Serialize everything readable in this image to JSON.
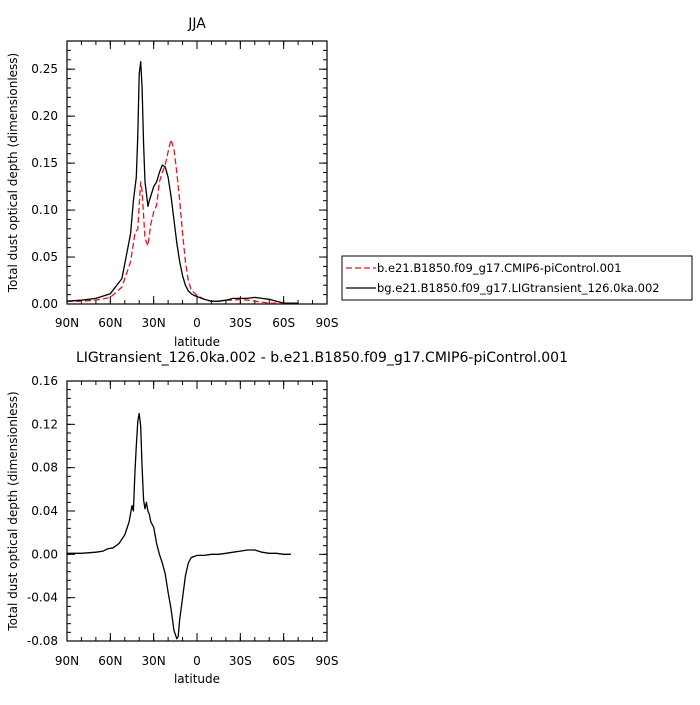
{
  "colors": {
    "control": "#e8141e",
    "transient": "#000000",
    "axis": "#000000"
  },
  "chart_data": [
    {
      "type": "line",
      "title": "JJA",
      "xlabel": "latitude",
      "ylabel": "Total dust optical depth (dimensionless)",
      "xlim": [
        90,
        -90
      ],
      "ylim": [
        0,
        0.28
      ],
      "x_ticks": [
        {
          "value": 90,
          "label": "90N"
        },
        {
          "value": 60,
          "label": "60N"
        },
        {
          "value": 30,
          "label": "30N"
        },
        {
          "value": 0,
          "label": "0"
        },
        {
          "value": -30,
          "label": "30S"
        },
        {
          "value": -60,
          "label": "60S"
        },
        {
          "value": -90,
          "label": "90S"
        }
      ],
      "y_ticks": [
        {
          "value": 0.0,
          "label": "0.00"
        },
        {
          "value": 0.05,
          "label": "0.05"
        },
        {
          "value": 0.1,
          "label": "0.10"
        },
        {
          "value": 0.15,
          "label": "0.15"
        },
        {
          "value": 0.2,
          "label": "0.20"
        },
        {
          "value": 0.25,
          "label": "0.25"
        }
      ],
      "grid": false,
      "legend_position": "right",
      "series": [
        {
          "name": "b.e21.B1850.f09_g17.CMIP6-piControl.001",
          "style": "dashed",
          "color": "#e8141e",
          "x": [
            90,
            80,
            70,
            60,
            52,
            46,
            43,
            41,
            40,
            39,
            38,
            36,
            34,
            32,
            30,
            28,
            26,
            24,
            22,
            20,
            18,
            16,
            14,
            12,
            10,
            8,
            6,
            4,
            2,
            0,
            -5,
            -10,
            -15,
            -20,
            -25,
            -30,
            -35,
            -40,
            -45,
            -50,
            -55,
            -60,
            -65,
            -70
          ],
          "y": [
            0.003,
            0.003,
            0.004,
            0.007,
            0.018,
            0.045,
            0.075,
            0.08,
            0.105,
            0.13,
            0.12,
            0.07,
            0.062,
            0.085,
            0.098,
            0.105,
            0.13,
            0.14,
            0.148,
            0.162,
            0.175,
            0.165,
            0.14,
            0.11,
            0.075,
            0.045,
            0.025,
            0.015,
            0.012,
            0.009,
            0.005,
            0.003,
            0.003,
            0.004,
            0.004,
            0.005,
            0.004,
            0.003,
            0.002,
            0.001,
            0.001,
            0.001,
            0.001,
            0.001
          ]
        },
        {
          "name": "bg.e21.B1850.f09_g17.LIGtransient_126.0ka.002",
          "style": "solid",
          "color": "#000000",
          "x": [
            90,
            80,
            70,
            60,
            52,
            46,
            44,
            42,
            41,
            40,
            39,
            38,
            37,
            36,
            35,
            34,
            33,
            32,
            30,
            28,
            26,
            24,
            22,
            20,
            18,
            16,
            14,
            12,
            10,
            8,
            6,
            4,
            2,
            0,
            -5,
            -10,
            -15,
            -20,
            -25,
            -30,
            -35,
            -40,
            -45,
            -50,
            -55,
            -60,
            -65,
            -70
          ],
          "y": [
            0.003,
            0.004,
            0.006,
            0.011,
            0.027,
            0.075,
            0.11,
            0.135,
            0.18,
            0.245,
            0.258,
            0.23,
            0.17,
            0.13,
            0.118,
            0.104,
            0.11,
            0.115,
            0.125,
            0.13,
            0.14,
            0.148,
            0.146,
            0.135,
            0.115,
            0.09,
            0.065,
            0.045,
            0.03,
            0.02,
            0.014,
            0.011,
            0.009,
            0.008,
            0.005,
            0.003,
            0.003,
            0.004,
            0.006,
            0.006,
            0.006,
            0.007,
            0.006,
            0.005,
            0.003,
            0.001,
            0.001,
            0.001
          ]
        }
      ]
    },
    {
      "type": "line",
      "title": "LIGtransient_126.0ka.002 - b.e21.B1850.f09_g17.CMIP6-piControl.001",
      "xlabel": "latitude",
      "ylabel": "Total dust optical depth (dimensionless)",
      "xlim": [
        90,
        -90
      ],
      "ylim": [
        -0.08,
        0.16
      ],
      "x_ticks": [
        {
          "value": 90,
          "label": "90N"
        },
        {
          "value": 60,
          "label": "60N"
        },
        {
          "value": 30,
          "label": "30N"
        },
        {
          "value": 0,
          "label": "0"
        },
        {
          "value": -30,
          "label": "30S"
        },
        {
          "value": -60,
          "label": "60S"
        },
        {
          "value": -90,
          "label": "90S"
        }
      ],
      "y_ticks": [
        {
          "value": -0.08,
          "label": "-0.08"
        },
        {
          "value": -0.04,
          "label": "-0.04"
        },
        {
          "value": 0.0,
          "label": "0.00"
        },
        {
          "value": 0.04,
          "label": "0.04"
        },
        {
          "value": 0.08,
          "label": "0.08"
        },
        {
          "value": 0.12,
          "label": "0.12"
        },
        {
          "value": 0.16,
          "label": "0.16"
        }
      ],
      "grid": false,
      "series": [
        {
          "name": "",
          "style": "solid",
          "color": "#000000",
          "x": [
            90,
            80,
            70,
            65,
            62,
            58,
            54,
            50,
            47,
            45,
            44,
            43,
            42,
            41,
            40,
            39,
            38,
            37,
            36,
            35,
            34,
            33,
            32,
            30,
            28,
            26,
            24,
            22,
            20,
            18,
            16,
            14,
            13,
            12,
            10,
            8,
            6,
            4,
            2,
            0,
            -5,
            -10,
            -15,
            -20,
            -25,
            -30,
            -35,
            -40,
            -45,
            -50,
            -55,
            -60,
            -65
          ],
          "y": [
            0.001,
            0.001,
            0.002,
            0.003,
            0.005,
            0.006,
            0.01,
            0.018,
            0.03,
            0.045,
            0.04,
            0.075,
            0.1,
            0.123,
            0.13,
            0.118,
            0.08,
            0.05,
            0.042,
            0.048,
            0.04,
            0.037,
            0.03,
            0.025,
            0.01,
            0.0,
            -0.008,
            -0.018,
            -0.035,
            -0.05,
            -0.07,
            -0.078,
            -0.076,
            -0.06,
            -0.04,
            -0.02,
            -0.008,
            -0.003,
            -0.002,
            -0.001,
            -0.001,
            0.0,
            0.0,
            0.001,
            0.002,
            0.003,
            0.004,
            0.004,
            0.002,
            0.001,
            0.001,
            0.0,
            0.0
          ]
        }
      ]
    }
  ]
}
